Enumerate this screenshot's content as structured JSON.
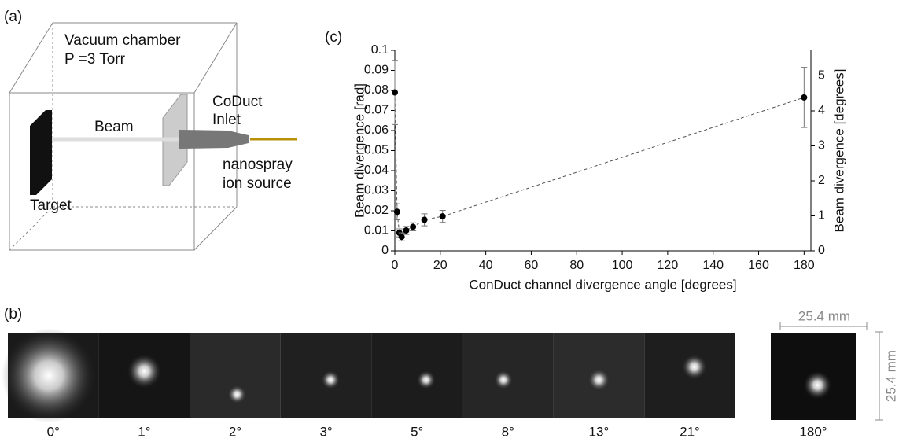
{
  "panel_labels": [
    "(a)",
    "(b)",
    "(c)"
  ],
  "diagram": {
    "chamber": "Vacuum chamber",
    "pressure": "P =3 Torr",
    "inlet": [
      "CoDuct",
      "Inlet"
    ],
    "beam": "Beam",
    "source": [
      "nanospray",
      "ion source"
    ],
    "target": "Target"
  },
  "chart_data": {
    "type": "scatter",
    "xlabel": "ConDuct channel divergence angle [degrees]",
    "ylabel": "Beam divergence [rad]",
    "y2label": "Beam divergence [degrees]",
    "x": [
      0,
      1,
      2,
      3,
      5,
      8,
      13,
      21,
      180
    ],
    "values": [
      0.079,
      0.0195,
      0.009,
      0.007,
      0.0102,
      0.012,
      0.0155,
      0.0172,
      0.0765
    ],
    "errors": [
      0.016,
      0.004,
      0.002,
      0.002,
      0.002,
      0.002,
      0.003,
      0.003,
      0.015
    ],
    "color": "#000000",
    "line_color": "#555555",
    "line_style": "dashed",
    "xlim": [
      0,
      183
    ],
    "ylim": [
      0,
      0.1
    ],
    "y2lim": [
      0,
      5.73
    ],
    "xticks": [
      0,
      20,
      40,
      60,
      80,
      100,
      120,
      140,
      160,
      180
    ],
    "yticks": [
      0,
      0.01,
      0.02,
      0.03,
      0.04,
      0.05,
      0.06,
      0.07,
      0.08,
      0.09,
      0.1
    ],
    "y2ticks": [
      0,
      1,
      2,
      3,
      4,
      5
    ]
  },
  "images": {
    "labels": [
      "0°",
      "1°",
      "2°",
      "3°",
      "5°",
      "8°",
      "13°",
      "21°",
      "180°"
    ],
    "scale": "25.4 mm"
  }
}
